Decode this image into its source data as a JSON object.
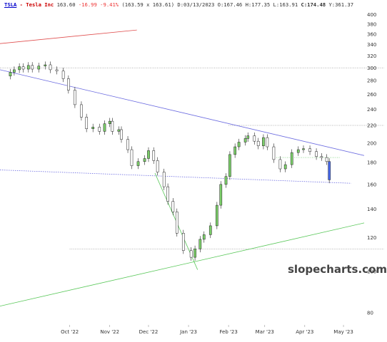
{
  "header": {
    "symbol": "TSLA",
    "sep": "-",
    "name": "Tesla Inc",
    "last": "163.60",
    "change": "-16.99",
    "change_pct": "-9.41%",
    "bidask": "(163.59 x 163.61)",
    "date_label": "D:",
    "date": "03/13/2023",
    "open_label": "O:",
    "open": "167.46",
    "high_label": "H:",
    "high": "177.35",
    "low_label": "L:",
    "low": "163.91",
    "close_label": "C:",
    "close": "174.48",
    "year_label": "Y:",
    "year": "361.37"
  },
  "watermark": "slopecharts.com",
  "colors": {
    "up_candle": "#7ccf6a",
    "down_candle": "#ffffff",
    "blue_candle": "#4a6cf0",
    "blue_line": "#6a6ae0",
    "red_line": "#e05050",
    "green_line": "#5ac85a"
  },
  "chart_data": {
    "type": "candlestick",
    "x_axis": {
      "type": "date",
      "range": [
        "2022-08-08",
        "2023-05-17"
      ],
      "ticks": [
        {
          "date": "2022-10-01",
          "label": "Oct '22"
        },
        {
          "date": "2022-11-01",
          "label": "Nov '22"
        },
        {
          "date": "2022-12-01",
          "label": "Dec '22"
        },
        {
          "date": "2023-01-01",
          "label": "Jan '23"
        },
        {
          "date": "2023-02-01",
          "label": "Feb '23"
        },
        {
          "date": "2023-03-01",
          "label": "Mar '23"
        },
        {
          "date": "2023-04-01",
          "label": "Apr '23"
        },
        {
          "date": "2023-05-01",
          "label": "May '23"
        }
      ]
    },
    "y_axis": {
      "scale": "log",
      "range": [
        75,
        410
      ],
      "position": "right",
      "ticks": [
        80,
        100,
        120,
        140,
        160,
        180,
        200,
        220,
        240,
        260,
        280,
        300,
        320,
        340,
        360,
        380,
        400
      ]
    },
    "closes": [
      [
        "2022-08-16",
        293
      ],
      [
        "2022-08-19",
        297
      ],
      [
        "2022-08-23",
        302
      ],
      [
        "2022-08-26",
        298
      ],
      [
        "2022-08-30",
        304
      ],
      [
        "2022-09-02",
        298
      ],
      [
        "2022-09-07",
        303
      ],
      [
        "2022-09-12",
        305
      ],
      [
        "2022-09-16",
        297
      ],
      [
        "2022-09-21",
        295
      ],
      [
        "2022-09-26",
        283
      ],
      [
        "2022-09-30",
        266
      ],
      [
        "2022-10-05",
        246
      ],
      [
        "2022-10-10",
        230
      ],
      [
        "2022-10-14",
        216
      ],
      [
        "2022-10-19",
        218
      ],
      [
        "2022-10-24",
        213
      ],
      [
        "2022-10-28",
        222
      ],
      [
        "2022-11-01",
        225
      ],
      [
        "2022-11-03",
        213
      ],
      [
        "2022-11-08",
        215
      ],
      [
        "2022-11-10",
        204
      ],
      [
        "2022-11-15",
        193
      ],
      [
        "2022-11-18",
        177
      ],
      [
        "2022-11-23",
        181
      ],
      [
        "2022-11-28",
        184
      ],
      [
        "2022-12-01",
        192
      ],
      [
        "2022-12-05",
        182
      ],
      [
        "2022-12-08",
        171
      ],
      [
        "2022-12-13",
        158
      ],
      [
        "2022-12-16",
        146
      ],
      [
        "2022-12-20",
        138
      ],
      [
        "2022-12-23",
        123
      ],
      [
        "2022-12-28",
        112
      ],
      [
        "2023-01-03",
        108
      ],
      [
        "2023-01-06",
        113
      ],
      [
        "2023-01-10",
        119
      ],
      [
        "2023-01-13",
        122
      ],
      [
        "2023-01-18",
        128
      ],
      [
        "2023-01-23",
        143
      ],
      [
        "2023-01-26",
        160
      ],
      [
        "2023-01-30",
        167
      ],
      [
        "2023-02-02",
        188
      ],
      [
        "2023-02-06",
        196
      ],
      [
        "2023-02-09",
        201
      ],
      [
        "2023-02-14",
        205
      ],
      [
        "2023-02-16",
        208
      ],
      [
        "2023-02-21",
        202
      ],
      [
        "2023-02-24",
        197
      ],
      [
        "2023-02-28",
        206
      ],
      [
        "2023-03-03",
        196
      ],
      [
        "2023-03-08",
        183
      ],
      [
        "2023-03-13",
        174
      ],
      [
        "2023-03-17",
        178
      ],
      [
        "2023-03-22",
        190
      ],
      [
        "2023-03-27",
        193
      ],
      [
        "2023-03-31",
        194
      ],
      [
        "2023-04-05",
        191
      ],
      [
        "2023-04-10",
        186
      ],
      [
        "2023-04-14",
        185
      ],
      [
        "2023-04-18",
        181
      ],
      [
        "2023-04-20",
        164
      ]
    ],
    "trendlines": [
      {
        "color": "blue",
        "style": "solid",
        "from": [
          "2022-08-08",
          297
        ],
        "to": [
          "2023-05-17",
          187
        ]
      },
      {
        "color": "blue",
        "style": "dotted",
        "from": [
          "2022-08-08",
          173
        ],
        "to": [
          "2023-05-07",
          161
        ]
      },
      {
        "color": "red",
        "style": "solid",
        "from": [
          "2022-08-08",
          342
        ],
        "to": [
          "2022-11-22",
          368
        ]
      },
      {
        "color": "green",
        "style": "solid",
        "from": [
          "2022-08-08",
          83
        ],
        "to": [
          "2023-05-17",
          130
        ]
      },
      {
        "color": "green",
        "style": "solid",
        "from": [
          "2022-12-06",
          170
        ],
        "to": [
          "2023-01-08",
          101
        ]
      }
    ],
    "horizontal_levels": [
      {
        "value": 300,
        "color": "gray"
      },
      {
        "value": 220,
        "color": "gray"
      },
      {
        "value": 185,
        "color": "green"
      },
      {
        "value": 113,
        "color": "gray"
      }
    ]
  }
}
